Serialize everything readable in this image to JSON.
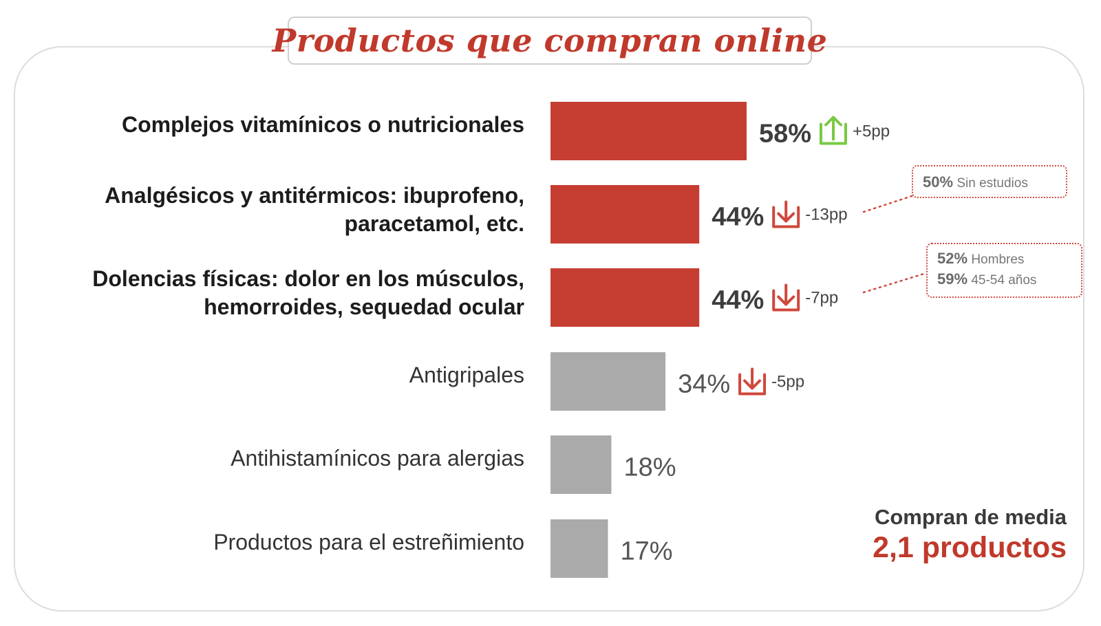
{
  "title": "Productos que compran online",
  "chart_data": {
    "type": "bar",
    "orientation": "horizontal",
    "categories": [
      "Complejos vitamínicos o nutricionales",
      "Analgésicos y antitérmicos: ibuprofeno, paracetamol, etc.",
      "Dolencias físicas: dolor en los músculos, hemorroides, sequedad ocular",
      "Antigripales",
      "Antihistamínicos para alergias",
      "Productos para el estreñimiento"
    ],
    "category_lines": [
      [
        "Complejos vitamínicos o nutricionales"
      ],
      [
        "Analgésicos y antitérmicos: ibuprofeno,",
        "paracetamol, etc."
      ],
      [
        "Dolencias físicas: dolor en los músculos,",
        "hemorroides, sequedad ocular"
      ],
      [
        "Antigripales"
      ],
      [
        "Antihistamínicos para alergias"
      ],
      [
        "Productos para el estreñimiento"
      ]
    ],
    "values": [
      58,
      44,
      44,
      34,
      18,
      17
    ],
    "value_labels": [
      "58%",
      "44%",
      "44%",
      "34%",
      "18%",
      "17%"
    ],
    "highlighted": [
      true,
      true,
      true,
      false,
      false,
      false
    ],
    "changes": [
      {
        "direction": "up",
        "label": "+5pp"
      },
      {
        "direction": "down",
        "label": "-13pp"
      },
      {
        "direction": "down",
        "label": "-7pp"
      },
      {
        "direction": "down",
        "label": "-5pp"
      },
      null,
      null
    ],
    "xlim": [
      0,
      58
    ],
    "colors": {
      "highlight": "#c63d32",
      "other": "#aaaaaa",
      "up": "#7ac943",
      "down": "#d0473b"
    }
  },
  "callouts": [
    {
      "rows": [
        {
          "value": "50%",
          "label": "Sin estudios"
        }
      ]
    },
    {
      "rows": [
        {
          "value": "52%",
          "label": "Hombres"
        },
        {
          "value": "59%",
          "label": "45-54 años"
        }
      ]
    }
  ],
  "summary": {
    "label": "Compran de media",
    "value": "2,1 productos"
  }
}
